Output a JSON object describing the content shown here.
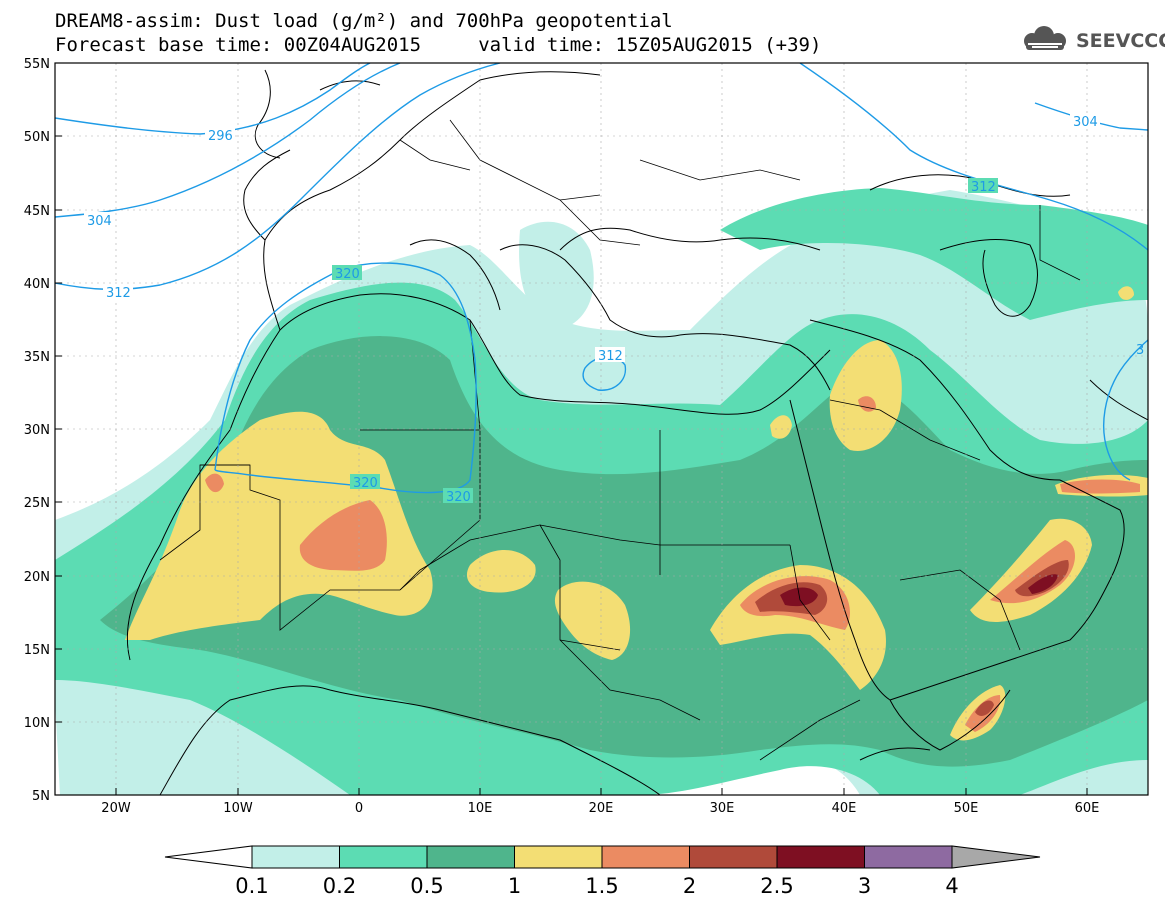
{
  "header": {
    "line1": "DREAM8-assim: Dust load (g/m²) and 700hPa geopotential",
    "line2": "Forecast base time: 00Z04AUG2015     valid time: 15Z05AUG2015 (+39)"
  },
  "logo": {
    "text": "SEEVCCC",
    "icon": "cloud-logo-icon"
  },
  "map": {
    "lat_labels": [
      "55N",
      "50N",
      "45N",
      "40N",
      "35N",
      "30N",
      "25N",
      "20N",
      "15N",
      "10N",
      "5N"
    ],
    "lon_labels": [
      "20W",
      "10W",
      "0",
      "10E",
      "20E",
      "30E",
      "40E",
      "50E",
      "60E"
    ],
    "contour_labels": [
      "296",
      "304",
      "312",
      "320",
      "320",
      "320",
      "312",
      "312",
      "304",
      "3"
    ]
  },
  "colorbar": {
    "ticks": [
      "0.1",
      "0.2",
      "0.5",
      "1",
      "1.5",
      "2",
      "2.5",
      "3",
      "4"
    ],
    "colors": [
      "#ffffff",
      "#c2efe8",
      "#5cdcb3",
      "#4fb58c",
      "#f3de74",
      "#eb8b62",
      "#b04a3a",
      "#7e0f22",
      "#8e6aa1",
      "#a8a8a8"
    ]
  }
}
